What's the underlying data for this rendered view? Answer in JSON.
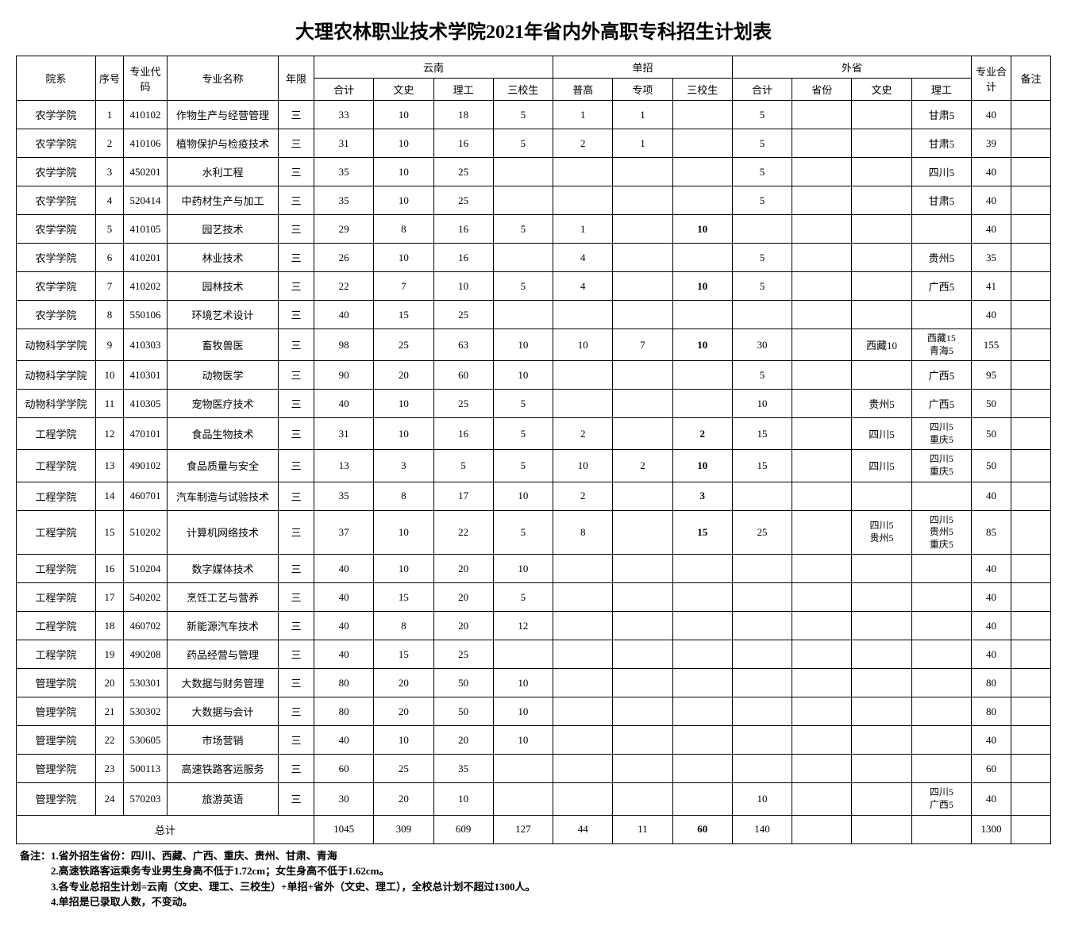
{
  "title": "大理农林职业技术学院2021年省内外高职专科招生计划表",
  "headers": {
    "dept": "院系",
    "seq": "序号",
    "code": "专业代码",
    "name": "专业名称",
    "year": "年限",
    "yunnan": "云南",
    "yn_total": "合计",
    "yn_wen": "文史",
    "yn_li": "理工",
    "yn_san": "三校生",
    "dz": "单招",
    "dz_pu": "普高",
    "dz_zx": "专项",
    "dz_san": "三校生",
    "ws": "外省",
    "ws_total": "合计",
    "ws_prov": "省份",
    "ws_wen": "文史",
    "ws_li": "理工",
    "major_total": "专业合计",
    "note": "备注"
  },
  "rows": [
    {
      "dept": "农学学院",
      "seq": "1",
      "code": "410102",
      "name": "作物生产与经营管理",
      "year": "三",
      "yn_t": "33",
      "yn_w": "10",
      "yn_l": "18",
      "yn_s": "5",
      "dz_p": "1",
      "dz_z": "1",
      "dz_s": "",
      "ws_t": "5",
      "ws_p": "",
      "ws_w": "",
      "ws_l": "甘肃5",
      "mt": "40",
      "nt": ""
    },
    {
      "dept": "农学学院",
      "seq": "2",
      "code": "410106",
      "name": "植物保护与检疫技术",
      "year": "三",
      "yn_t": "31",
      "yn_w": "10",
      "yn_l": "16",
      "yn_s": "5",
      "dz_p": "2",
      "dz_z": "1",
      "dz_s": "",
      "ws_t": "5",
      "ws_p": "",
      "ws_w": "",
      "ws_l": "甘肃5",
      "mt": "39",
      "nt": ""
    },
    {
      "dept": "农学学院",
      "seq": "3",
      "code": "450201",
      "name": "水利工程",
      "year": "三",
      "yn_t": "35",
      "yn_w": "10",
      "yn_l": "25",
      "yn_s": "",
      "dz_p": "",
      "dz_z": "",
      "dz_s": "",
      "ws_t": "5",
      "ws_p": "",
      "ws_w": "",
      "ws_l": "四川5",
      "mt": "40",
      "nt": ""
    },
    {
      "dept": "农学学院",
      "seq": "4",
      "code": "520414",
      "name": "中药材生产与加工",
      "year": "三",
      "yn_t": "35",
      "yn_w": "10",
      "yn_l": "25",
      "yn_s": "",
      "dz_p": "",
      "dz_z": "",
      "dz_s": "",
      "ws_t": "5",
      "ws_p": "",
      "ws_w": "",
      "ws_l": "甘肃5",
      "mt": "40",
      "nt": ""
    },
    {
      "dept": "农学学院",
      "seq": "5",
      "code": "410105",
      "name": "园艺技术",
      "year": "三",
      "yn_t": "29",
      "yn_w": "8",
      "yn_l": "16",
      "yn_s": "5",
      "dz_p": "1",
      "dz_z": "",
      "dz_s": "10",
      "dz_s_bold": true,
      "ws_t": "",
      "ws_p": "",
      "ws_w": "",
      "ws_l": "",
      "mt": "40",
      "nt": ""
    },
    {
      "dept": "农学学院",
      "seq": "6",
      "code": "410201",
      "name": "林业技术",
      "year": "三",
      "yn_t": "26",
      "yn_w": "10",
      "yn_l": "16",
      "yn_s": "",
      "dz_p": "4",
      "dz_z": "",
      "dz_s": "",
      "ws_t": "5",
      "ws_p": "",
      "ws_w": "",
      "ws_l": "贵州5",
      "mt": "35",
      "nt": ""
    },
    {
      "dept": "农学学院",
      "seq": "7",
      "code": "410202",
      "name": "园林技术",
      "year": "三",
      "yn_t": "22",
      "yn_w": "7",
      "yn_l": "10",
      "yn_s": "5",
      "dz_p": "4",
      "dz_z": "",
      "dz_s": "10",
      "dz_s_bold": true,
      "ws_t": "5",
      "ws_p": "",
      "ws_w": "",
      "ws_l": "广西5",
      "mt": "41",
      "nt": ""
    },
    {
      "dept": "农学学院",
      "seq": "8",
      "code": "550106",
      "name": "环境艺术设计",
      "year": "三",
      "yn_t": "40",
      "yn_w": "15",
      "yn_l": "25",
      "yn_s": "",
      "dz_p": "",
      "dz_z": "",
      "dz_s": "",
      "ws_t": "",
      "ws_p": "",
      "ws_w": "",
      "ws_l": "",
      "mt": "40",
      "nt": ""
    },
    {
      "dept": "动物科学学院",
      "seq": "9",
      "code": "410303",
      "name": "畜牧兽医",
      "year": "三",
      "yn_t": "98",
      "yn_w": "25",
      "yn_l": "63",
      "yn_s": "10",
      "dz_p": "10",
      "dz_z": "7",
      "dz_s": "10",
      "dz_s_bold": true,
      "ws_t": "30",
      "ws_p": "",
      "ws_w": "西藏10",
      "ws_l": "西藏15\n青海5",
      "mt": "155",
      "nt": ""
    },
    {
      "dept": "动物科学学院",
      "seq": "10",
      "code": "410301",
      "name": "动物医学",
      "year": "三",
      "yn_t": "90",
      "yn_w": "20",
      "yn_l": "60",
      "yn_s": "10",
      "dz_p": "",
      "dz_z": "",
      "dz_s": "",
      "ws_t": "5",
      "ws_p": "",
      "ws_w": "",
      "ws_l": "广西5",
      "mt": "95",
      "nt": ""
    },
    {
      "dept": "动物科学学院",
      "seq": "11",
      "code": "410305",
      "name": "宠物医疗技术",
      "year": "三",
      "yn_t": "40",
      "yn_w": "10",
      "yn_l": "25",
      "yn_s": "5",
      "dz_p": "",
      "dz_z": "",
      "dz_s": "",
      "ws_t": "10",
      "ws_p": "",
      "ws_w": "贵州5",
      "ws_l": "广西5",
      "mt": "50",
      "nt": ""
    },
    {
      "dept": "工程学院",
      "seq": "12",
      "code": "470101",
      "name": "食品生物技术",
      "year": "三",
      "yn_t": "31",
      "yn_w": "10",
      "yn_l": "16",
      "yn_s": "5",
      "dz_p": "2",
      "dz_z": "",
      "dz_s": "2",
      "dz_s_bold": true,
      "ws_t": "15",
      "ws_p": "",
      "ws_w": "四川5",
      "ws_l": "四川5\n重庆5",
      "mt": "50",
      "nt": ""
    },
    {
      "dept": "工程学院",
      "seq": "13",
      "code": "490102",
      "name": "食品质量与安全",
      "year": "三",
      "yn_t": "13",
      "yn_w": "3",
      "yn_l": "5",
      "yn_s": "5",
      "dz_p": "10",
      "dz_z": "2",
      "dz_s": "10",
      "dz_s_bold": true,
      "ws_t": "15",
      "ws_p": "",
      "ws_w": "四川5",
      "ws_l": "四川5\n重庆5",
      "mt": "50",
      "nt": ""
    },
    {
      "dept": "工程学院",
      "seq": "14",
      "code": "460701",
      "name": "汽车制造与试验技术",
      "year": "三",
      "yn_t": "35",
      "yn_w": "8",
      "yn_l": "17",
      "yn_s": "10",
      "dz_p": "2",
      "dz_z": "",
      "dz_s": "3",
      "dz_s_bold": true,
      "ws_t": "",
      "ws_p": "",
      "ws_w": "",
      "ws_l": "",
      "mt": "40",
      "nt": ""
    },
    {
      "dept": "工程学院",
      "seq": "15",
      "code": "510202",
      "name": "计算机网络技术",
      "year": "三",
      "yn_t": "37",
      "yn_w": "10",
      "yn_l": "22",
      "yn_s": "5",
      "dz_p": "8",
      "dz_z": "",
      "dz_s": "15",
      "dz_s_bold": true,
      "ws_t": "25",
      "ws_p": "",
      "ws_w": "四川5\n贵州5",
      "ws_l": "四川5\n贵州5\n重庆5",
      "mt": "85",
      "nt": ""
    },
    {
      "dept": "工程学院",
      "seq": "16",
      "code": "510204",
      "name": "数字媒体技术",
      "year": "三",
      "yn_t": "40",
      "yn_w": "10",
      "yn_l": "20",
      "yn_s": "10",
      "dz_p": "",
      "dz_z": "",
      "dz_s": "",
      "ws_t": "",
      "ws_p": "",
      "ws_w": "",
      "ws_l": "",
      "mt": "40",
      "nt": ""
    },
    {
      "dept": "工程学院",
      "seq": "17",
      "code": "540202",
      "name": "烹饪工艺与营养",
      "year": "三",
      "yn_t": "40",
      "yn_w": "15",
      "yn_l": "20",
      "yn_s": "5",
      "dz_p": "",
      "dz_z": "",
      "dz_s": "",
      "ws_t": "",
      "ws_p": "",
      "ws_w": "",
      "ws_l": "",
      "mt": "40",
      "nt": ""
    },
    {
      "dept": "工程学院",
      "seq": "18",
      "code": "460702",
      "name": "新能源汽车技术",
      "year": "三",
      "yn_t": "40",
      "yn_w": "8",
      "yn_l": "20",
      "yn_s": "12",
      "dz_p": "",
      "dz_z": "",
      "dz_s": "",
      "ws_t": "",
      "ws_p": "",
      "ws_w": "",
      "ws_l": "",
      "mt": "40",
      "nt": ""
    },
    {
      "dept": "工程学院",
      "seq": "19",
      "code": "490208",
      "name": "药品经营与管理",
      "year": "三",
      "yn_t": "40",
      "yn_w": "15",
      "yn_l": "25",
      "yn_s": "",
      "dz_p": "",
      "dz_z": "",
      "dz_s": "",
      "ws_t": "",
      "ws_p": "",
      "ws_w": "",
      "ws_l": "",
      "mt": "40",
      "nt": ""
    },
    {
      "dept": "管理学院",
      "seq": "20",
      "code": "530301",
      "name": "大数据与财务管理",
      "year": "三",
      "yn_t": "80",
      "yn_w": "20",
      "yn_l": "50",
      "yn_s": "10",
      "dz_p": "",
      "dz_z": "",
      "dz_s": "",
      "ws_t": "",
      "ws_p": "",
      "ws_w": "",
      "ws_l": "",
      "mt": "80",
      "nt": ""
    },
    {
      "dept": "管理学院",
      "seq": "21",
      "code": "530302",
      "name": "大数据与会计",
      "year": "三",
      "yn_t": "80",
      "yn_w": "20",
      "yn_l": "50",
      "yn_s": "10",
      "dz_p": "",
      "dz_z": "",
      "dz_s": "",
      "ws_t": "",
      "ws_p": "",
      "ws_w": "",
      "ws_l": "",
      "mt": "80",
      "nt": ""
    },
    {
      "dept": "管理学院",
      "seq": "22",
      "code": "530605",
      "name": "市场营销",
      "year": "三",
      "yn_t": "40",
      "yn_w": "10",
      "yn_l": "20",
      "yn_s": "10",
      "dz_p": "",
      "dz_z": "",
      "dz_s": "",
      "ws_t": "",
      "ws_p": "",
      "ws_w": "",
      "ws_l": "",
      "mt": "40",
      "nt": ""
    },
    {
      "dept": "管理学院",
      "seq": "23",
      "code": "500113",
      "name": "高速铁路客运服务",
      "year": "三",
      "yn_t": "60",
      "yn_w": "25",
      "yn_l": "35",
      "yn_s": "",
      "dz_p": "",
      "dz_z": "",
      "dz_s": "",
      "ws_t": "",
      "ws_p": "",
      "ws_w": "",
      "ws_l": "",
      "mt": "60",
      "nt": ""
    },
    {
      "dept": "管理学院",
      "seq": "24",
      "code": "570203",
      "name": "旅游英语",
      "year": "三",
      "yn_t": "30",
      "yn_w": "20",
      "yn_l": "10",
      "yn_s": "",
      "dz_p": "",
      "dz_z": "",
      "dz_s": "",
      "ws_t": "10",
      "ws_p": "",
      "ws_w": "",
      "ws_l": "四川5\n广西5",
      "mt": "40",
      "nt": ""
    }
  ],
  "total": {
    "label": "总计",
    "yn_t": "1045",
    "yn_w": "309",
    "yn_l": "609",
    "yn_s": "127",
    "dz_p": "44",
    "dz_z": "11",
    "dz_s": "60",
    "ws_t": "140",
    "mt": "1300"
  },
  "footnotes": [
    "备注：1.省外招生省份：四川、西藏、广西、重庆、贵州、甘肃、青海",
    "　　　2.高速铁路客运乘务专业男生身高不低于1.72cm；女生身高不低于1.62cm。",
    "　　　3.各专业总招生计划=云南（文史、理工、三校生）+单招+省外（文史、理工），全校总计划不超过1300人。",
    "　　　4.单招是已录取人数，不变动。"
  ]
}
